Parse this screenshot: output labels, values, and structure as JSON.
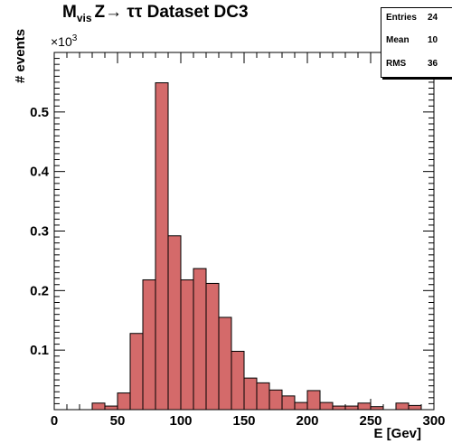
{
  "title_main": "M",
  "title_sub": "vis",
  "title_rest": "Z→ ττ Dataset DC3",
  "y_multiplier_base": "×10",
  "y_multiplier_exp": "3",
  "stats": {
    "entries_label": "Entries",
    "entries_value": "24",
    "mean_label": "Mean",
    "mean_value": "10",
    "rms_label": "RMS",
    "rms_value": "36"
  },
  "colors": {
    "fill": "#d46a6a",
    "line": "#000000"
  },
  "chart_data": {
    "type": "bar",
    "title": "M vis Z→ ττ Dataset DC3",
    "xlabel": "E [Gev]",
    "ylabel": "# events",
    "xlim": [
      0,
      300
    ],
    "ylim": [
      0,
      0.6
    ],
    "y_unit_multiplier": 1000,
    "xticks": [
      0,
      50,
      100,
      150,
      200,
      250,
      300
    ],
    "yticks": [
      0.1,
      0.2,
      0.3,
      0.4,
      0.5
    ],
    "ytick_labels": [
      "0.1",
      "0.2",
      "0.3",
      "0.4",
      "0.5"
    ],
    "xtick_labels": [
      "0",
      "50",
      "100",
      "150",
      "200",
      "250",
      "300"
    ],
    "bin_width": 10,
    "bin_edges_start": 0,
    "values": [
      0,
      0,
      0,
      0.011,
      0.006,
      0.028,
      0.128,
      0.218,
      0.549,
      0.292,
      0.218,
      0.237,
      0.212,
      0.155,
      0.098,
      0.053,
      0.045,
      0.033,
      0.023,
      0.012,
      0.032,
      0.012,
      0.006,
      0.006,
      0.011,
      0.005,
      0,
      0.011,
      0.007,
      0
    ],
    "legend": "none",
    "grid": false
  }
}
